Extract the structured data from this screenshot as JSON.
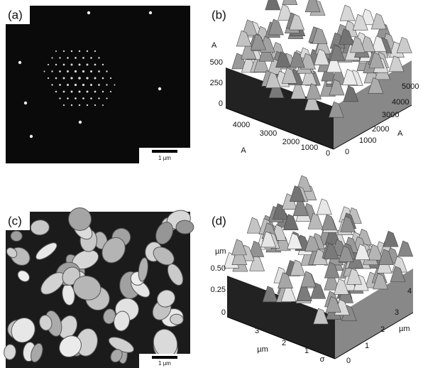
{
  "panels": [
    {
      "label": "(a)",
      "scale_bar": "1 µm"
    },
    {
      "label": "(b)",
      "z_unit": "A",
      "z_ticks": [
        "500",
        "250",
        "0"
      ],
      "x_ticks": [
        "4000",
        "3000",
        "2000",
        "1000",
        "0"
      ],
      "x_unit": "A",
      "y_ticks": [
        "0",
        "1000",
        "2000",
        "3000",
        "4000",
        "5000"
      ],
      "y_unit": "A"
    },
    {
      "label": "(c)",
      "scale_bar": "1 µm"
    },
    {
      "label": "(d)",
      "z_unit": "µm",
      "z_ticks": [
        "0.50",
        "0.25",
        "0"
      ],
      "x_ticks": [
        "3",
        "2",
        "1",
        "σ"
      ],
      "x_unit": "µm",
      "y_ticks": [
        "0",
        "1",
        "2",
        "3",
        "4"
      ],
      "y_unit": "µm"
    }
  ]
}
